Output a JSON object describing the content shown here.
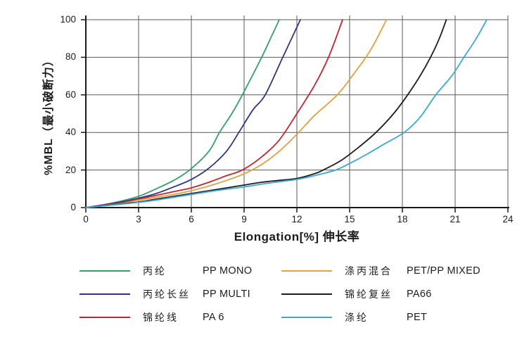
{
  "chart_data": {
    "type": "line",
    "title": "",
    "xlabel": "Elongation[%]  伸长率",
    "ylabel": "%MBL（最小破断力）",
    "xlim": [
      0,
      24
    ],
    "ylim": [
      0,
      100
    ],
    "x_ticks": [
      0,
      3,
      6,
      9,
      12,
      15,
      18,
      21,
      24
    ],
    "y_ticks": [
      0,
      20,
      40,
      60,
      80,
      100
    ],
    "grid": true,
    "legend_position": "bottom",
    "series": [
      {
        "label_cn": "丙纶",
        "label_en": "PP MONO",
        "color": "#33a069",
        "points": [
          [
            0,
            0
          ],
          [
            1,
            1.5
          ],
          [
            2,
            3.5
          ],
          [
            3,
            6
          ],
          [
            4,
            10
          ],
          [
            5,
            14.5
          ],
          [
            5.9,
            20
          ],
          [
            7,
            30
          ],
          [
            7.6,
            40
          ],
          [
            8.3,
            50
          ],
          [
            8.9,
            60
          ],
          [
            10,
            80
          ],
          [
            10.5,
            90
          ],
          [
            11,
            100
          ]
        ]
      },
      {
        "label_cn": "丙纶长丝",
        "label_en": "PP MULTI",
        "color": "#2e3582",
        "points": [
          [
            0,
            0
          ],
          [
            2,
            3
          ],
          [
            3,
            5
          ],
          [
            4,
            7.5
          ],
          [
            5,
            11
          ],
          [
            6,
            15
          ],
          [
            7,
            21
          ],
          [
            8,
            30
          ],
          [
            8.7,
            40
          ],
          [
            9.5,
            52
          ],
          [
            10.2,
            60
          ],
          [
            11.2,
            80
          ],
          [
            12.2,
            100
          ]
        ]
      },
      {
        "label_cn": "锦纶线",
        "label_en": "PA 6",
        "color": "#c8232f",
        "points": [
          [
            0,
            0
          ],
          [
            2,
            2.5
          ],
          [
            3,
            4.5
          ],
          [
            4,
            6.5
          ],
          [
            5,
            8.5
          ],
          [
            6,
            10.5
          ],
          [
            7,
            13.5
          ],
          [
            8,
            17
          ],
          [
            8.9,
            20
          ],
          [
            10,
            27
          ],
          [
            11,
            36
          ],
          [
            12,
            50
          ],
          [
            13,
            65
          ],
          [
            13.8,
            80
          ],
          [
            14.6,
            100
          ]
        ]
      },
      {
        "label_cn": "涤丙混合",
        "label_en": "PET/PP MIXED",
        "color": "#e5a03c",
        "points": [
          [
            0,
            0
          ],
          [
            2,
            2.2
          ],
          [
            3,
            4
          ],
          [
            4,
            5.5
          ],
          [
            5,
            7
          ],
          [
            6,
            9
          ],
          [
            7,
            11.5
          ],
          [
            8,
            14.5
          ],
          [
            9,
            18
          ],
          [
            10,
            23
          ],
          [
            11,
            30
          ],
          [
            12,
            39
          ],
          [
            13,
            49
          ],
          [
            14.3,
            60
          ],
          [
            15.3,
            72
          ],
          [
            16.2,
            84
          ],
          [
            17.1,
            100
          ]
        ]
      },
      {
        "label_cn": "锦纶复丝",
        "label_en": "PA66",
        "color": "#1d1d1f",
        "points": [
          [
            0,
            0
          ],
          [
            2,
            2
          ],
          [
            3,
            3
          ],
          [
            4,
            4.5
          ],
          [
            5,
            6
          ],
          [
            6,
            7.5
          ],
          [
            7,
            9
          ],
          [
            8,
            10.5
          ],
          [
            9,
            12
          ],
          [
            10,
            13.5
          ],
          [
            11,
            14.5
          ],
          [
            12,
            15.5
          ],
          [
            13,
            18
          ],
          [
            13.5,
            20
          ],
          [
            14.5,
            25
          ],
          [
            15.5,
            32
          ],
          [
            16.5,
            40
          ],
          [
            17.5,
            50
          ],
          [
            18.3,
            60
          ],
          [
            19,
            70
          ],
          [
            19.6,
            80
          ],
          [
            20.1,
            90
          ],
          [
            20.5,
            100
          ]
        ]
      },
      {
        "label_cn": "涤纶",
        "label_en": "PET",
        "color": "#3aa8d8",
        "points": [
          [
            0,
            0
          ],
          [
            2,
            1.8
          ],
          [
            3,
            2.8
          ],
          [
            4,
            4
          ],
          [
            5,
            5.5
          ],
          [
            6,
            7
          ],
          [
            7,
            8.5
          ],
          [
            8,
            9.8
          ],
          [
            9,
            11
          ],
          [
            10,
            12.5
          ],
          [
            11,
            13.8
          ],
          [
            12,
            15
          ],
          [
            13,
            17
          ],
          [
            14.2,
            20
          ],
          [
            15,
            23.5
          ],
          [
            16,
            28.5
          ],
          [
            17,
            34
          ],
          [
            18.1,
            40
          ],
          [
            19,
            48
          ],
          [
            19.9,
            60
          ],
          [
            20.8,
            70
          ],
          [
            21.5,
            80
          ],
          [
            22.2,
            90
          ],
          [
            22.8,
            100
          ]
        ]
      }
    ]
  },
  "colors": {
    "background": "#ffffff",
    "grid": "#58595b",
    "axis": "#1a1a1a",
    "text": "#1c1c1c"
  }
}
